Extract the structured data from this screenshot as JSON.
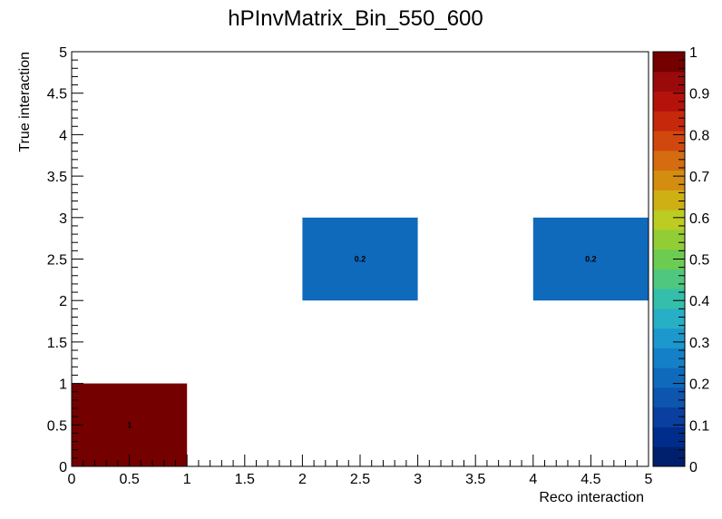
{
  "chart_data": {
    "type": "heatmap",
    "title": "hPInvMatrix_Bin_550_600",
    "xlabel": "Reco interaction",
    "ylabel": "True interaction",
    "xlim": [
      0,
      5
    ],
    "ylim": [
      0,
      5
    ],
    "x_tick_labels": [
      "0",
      "0.5",
      "1",
      "1.5",
      "2",
      "2.5",
      "3",
      "3.5",
      "4",
      "4.5",
      "5"
    ],
    "y_tick_labels": [
      "0",
      "0.5",
      "1",
      "1.5",
      "2",
      "2.5",
      "3",
      "3.5",
      "4",
      "4.5",
      "5"
    ],
    "zlim": [
      0,
      1
    ],
    "z_tick_labels": [
      "0",
      "0.1",
      "0.2",
      "0.3",
      "0.4",
      "0.5",
      "0.6",
      "0.7",
      "0.8",
      "0.9",
      "1"
    ],
    "cells": [
      {
        "x": [
          0,
          1
        ],
        "y": [
          0,
          1
        ],
        "value": 1,
        "label": "1"
      },
      {
        "x": [
          2,
          3
        ],
        "y": [
          2,
          3
        ],
        "value": 0.2,
        "label": "0.2"
      },
      {
        "x": [
          4,
          5
        ],
        "y": [
          2,
          3
        ],
        "value": 0.2,
        "label": "0.2"
      }
    ],
    "palette": [
      "#00206e",
      "#002d8c",
      "#0a3fa0",
      "#0d55ae",
      "#0f6abc",
      "#1380c8",
      "#1d98cc",
      "#27afc6",
      "#35bfaa",
      "#4fc77f",
      "#6ccc52",
      "#92cd36",
      "#bccc22",
      "#cfb014",
      "#d38e12",
      "#d56c10",
      "#d0480d",
      "#c6280b",
      "#b5120b",
      "#9a0a0a",
      "#750000"
    ]
  }
}
